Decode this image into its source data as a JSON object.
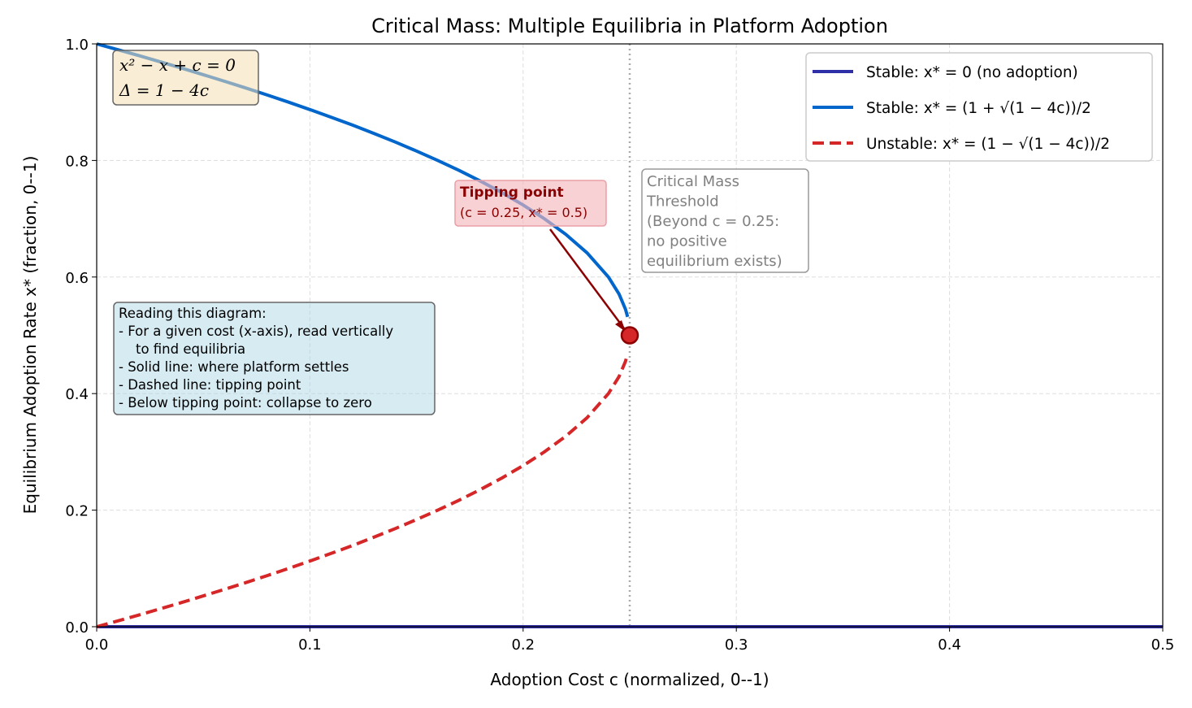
{
  "chart_data": {
    "type": "line",
    "title": "Critical Mass: Multiple Equilibria in Platform Adoption",
    "xlabel": "Adoption Cost c (normalized, 0--1)",
    "ylabel": "Equilibrium Adoption Rate x* (fraction, 0--1)",
    "xlim": [
      0,
      0.5
    ],
    "ylim": [
      0,
      1
    ],
    "xticks": [
      "0.0",
      "0.1",
      "0.2",
      "0.3",
      "0.4",
      "0.5"
    ],
    "yticks": [
      "0.0",
      "0.2",
      "0.4",
      "0.6",
      "0.8",
      "1.0"
    ],
    "grid": true,
    "legend_position": "top-right",
    "series": [
      {
        "name": "Stable: x* = 0 (no adoption)",
        "color": "#2f2fa8",
        "style": "solid",
        "x": [
          0,
          0.5
        ],
        "y": [
          0,
          0
        ]
      },
      {
        "name": "Stable: x* = (1 + √(1 − 4c))/2",
        "color": "#0066cc",
        "style": "solid",
        "x": [
          0,
          0.01,
          0.02,
          0.03,
          0.04,
          0.05,
          0.06,
          0.07,
          0.08,
          0.09,
          0.1,
          0.11,
          0.12,
          0.13,
          0.14,
          0.15,
          0.16,
          0.17,
          0.18,
          0.19,
          0.2,
          0.21,
          0.22,
          0.23,
          0.24,
          0.245,
          0.248,
          0.249
        ],
        "y": [
          1.0,
          0.9899,
          0.9796,
          0.969,
          0.9583,
          0.9472,
          0.9359,
          0.9243,
          0.9123,
          0.9,
          0.8873,
          0.8742,
          0.8606,
          0.8464,
          0.8317,
          0.8162,
          0.8,
          0.7828,
          0.7646,
          0.7449,
          0.7236,
          0.7,
          0.6732,
          0.6414,
          0.6,
          0.5707,
          0.5447,
          0.5316
        ]
      },
      {
        "name": "Unstable: x* = (1 − √(1 − 4c))/2",
        "color": "#d62728",
        "style": "dashed",
        "x": [
          0,
          0.01,
          0.02,
          0.03,
          0.04,
          0.05,
          0.06,
          0.07,
          0.08,
          0.09,
          0.1,
          0.11,
          0.12,
          0.13,
          0.14,
          0.15,
          0.16,
          0.17,
          0.18,
          0.19,
          0.2,
          0.21,
          0.22,
          0.23,
          0.24,
          0.245,
          0.248,
          0.249
        ],
        "y": [
          0,
          0.0101,
          0.0204,
          0.031,
          0.0417,
          0.0528,
          0.0641,
          0.0757,
          0.0877,
          0.1,
          0.1127,
          0.1258,
          0.1394,
          0.1536,
          0.1683,
          0.1838,
          0.2,
          0.2172,
          0.2354,
          0.2551,
          0.2764,
          0.3,
          0.3268,
          0.3586,
          0.4,
          0.4293,
          0.4553,
          0.4684
        ]
      }
    ],
    "threshold_line": {
      "x": 0.25,
      "color": "#aaaaaa",
      "style": "dotted"
    },
    "tipping_point": {
      "x": 0.25,
      "y": 0.5,
      "color": "#d62728"
    },
    "annotations": {
      "equation_line1": "x² − x + c = 0",
      "equation_line2": "Δ = 1 − 4c",
      "tipping_title": "Tipping point",
      "tipping_detail": "(c = 0.25, x* = 0.5)",
      "threshold_lines": [
        "Critical Mass",
        "Threshold",
        "(Beyond c = 0.25:",
        "no positive",
        "equilibrium exists)"
      ],
      "reading_lines": [
        "Reading this diagram:",
        "- For a given cost (x-axis), read vertically",
        "  to find equilibria",
        "- Solid line: where platform settles",
        "- Dashed line: tipping point",
        "- Below tipping point: collapse to zero"
      ]
    }
  }
}
